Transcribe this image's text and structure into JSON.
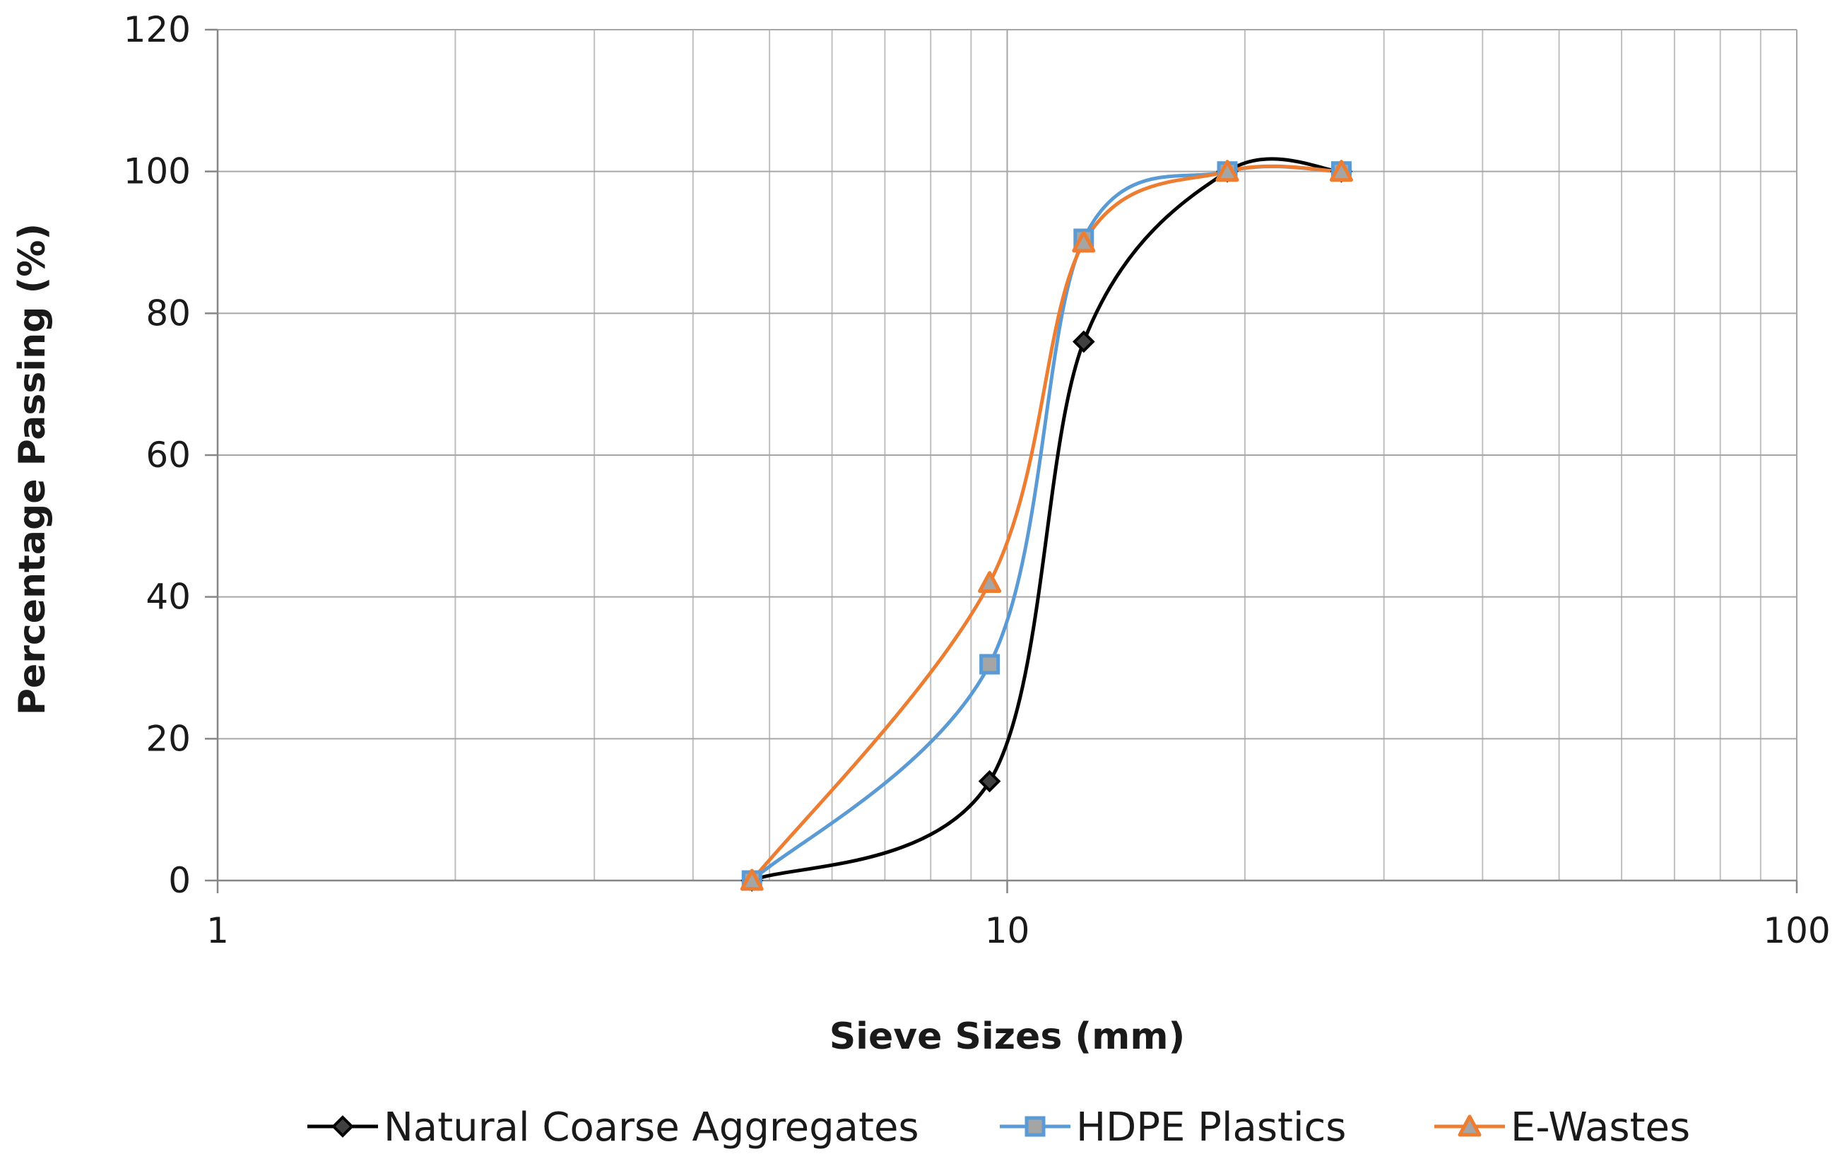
{
  "chart_data": {
    "type": "line",
    "title": "",
    "xlabel": "Sieve Sizes (mm)",
    "ylabel": "Percentage Passing (%)",
    "x_scale": "log",
    "xlim": [
      1,
      100
    ],
    "ylim": [
      0,
      120
    ],
    "x_ticks": [
      {
        "value": 1,
        "label": "1"
      },
      {
        "value": 10,
        "label": "10"
      },
      {
        "value": 100,
        "label": "100"
      }
    ],
    "y_ticks": [
      {
        "value": 0,
        "label": "0"
      },
      {
        "value": 20,
        "label": "20"
      },
      {
        "value": 40,
        "label": "40"
      },
      {
        "value": 60,
        "label": "60"
      },
      {
        "value": 80,
        "label": "80"
      },
      {
        "value": 100,
        "label": "100"
      },
      {
        "value": 120,
        "label": "120"
      }
    ],
    "grid": true,
    "legend_position": "bottom",
    "series": [
      {
        "name": "Natural Coarse Aggregates",
        "color": "#000000",
        "marker_fill": "#404040",
        "marker": "diamond",
        "x": [
          4.75,
          9.5,
          12.5,
          19,
          26.5
        ],
        "y": [
          0,
          14,
          76,
          100,
          100
        ]
      },
      {
        "name": "HDPE Plastics",
        "color": "#5B9BD5",
        "marker_fill": "#A5A5A5",
        "marker": "square",
        "x": [
          4.75,
          9.5,
          12.5,
          19,
          26.5
        ],
        "y": [
          0,
          30.5,
          90.5,
          100,
          100
        ]
      },
      {
        "name": "E-Wastes",
        "color": "#ED7D31",
        "marker_fill": "#A5A5A5",
        "marker": "triangle",
        "x": [
          4.75,
          9.5,
          12.5,
          19,
          26.5
        ],
        "y": [
          0,
          42,
          90,
          100,
          100
        ]
      }
    ]
  }
}
